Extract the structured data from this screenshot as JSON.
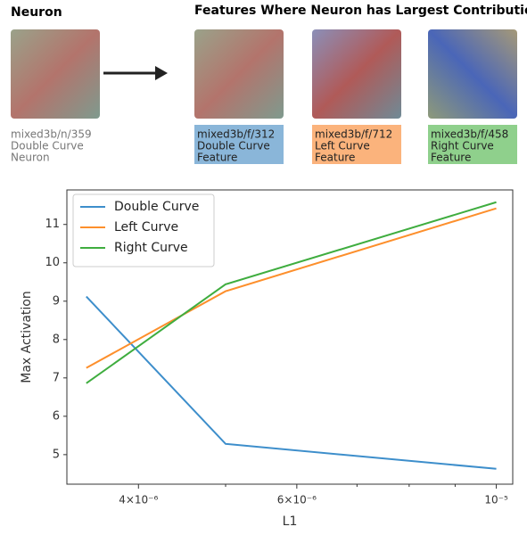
{
  "header": {
    "neuron_title": "Neuron",
    "features_title": "Features Where Neuron has Largest Contribution",
    "neuron_lines": [
      "mixed3b/n/359",
      "Double Curve",
      "Neuron"
    ],
    "features": [
      {
        "lines": [
          "mixed3b/f/312",
          "Double Curve",
          "Feature"
        ],
        "color": "#8ab6d9"
      },
      {
        "lines": [
          "mixed3b/f/712",
          "Left Curve",
          "Feature"
        ],
        "color": "#fbb37c"
      },
      {
        "lines": [
          "mixed3b/f/458",
          "Right Curve",
          "Feature"
        ],
        "color": "#8fd08c"
      }
    ]
  },
  "chart_data": {
    "type": "line",
    "x_label": "L1",
    "y_label": "Max Activation",
    "x_log": true,
    "x": [
      3.5e-06,
      5e-06,
      1e-05
    ],
    "series": [
      {
        "name": "Double Curve",
        "color": "#3d8ecb",
        "values": [
          9.12,
          5.28,
          4.63
        ]
      },
      {
        "name": "Left Curve",
        "color": "#fd8f2c",
        "values": [
          7.26,
          9.26,
          11.42
        ]
      },
      {
        "name": "Right Curve",
        "color": "#3fad3f",
        "values": [
          6.86,
          9.44,
          11.58
        ]
      }
    ],
    "xlim": [
      3.33e-06,
      1.043e-05
    ],
    "ylim": [
      4.23,
      11.9
    ],
    "xticks": [
      {
        "value": 4e-06,
        "label": "4×10⁻⁶"
      },
      {
        "value": 6e-06,
        "label": "6×10⁻⁶"
      },
      {
        "value": 1e-05,
        "label": "10⁻⁵"
      }
    ],
    "xminorticks": [
      5e-06,
      7e-06,
      8e-06,
      9e-06
    ],
    "yticks": [
      5,
      6,
      7,
      8,
      9,
      10,
      11
    ],
    "legend": "upper left"
  }
}
